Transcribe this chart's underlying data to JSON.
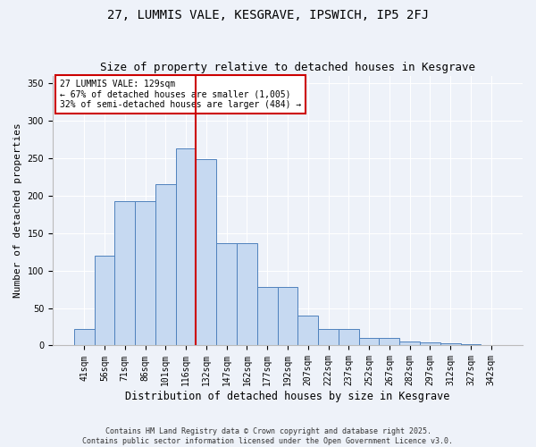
{
  "title": "27, LUMMIS VALE, KESGRAVE, IPSWICH, IP5 2FJ",
  "subtitle": "Size of property relative to detached houses in Kesgrave",
  "xlabel": "Distribution of detached houses by size in Kesgrave",
  "ylabel": "Number of detached properties",
  "categories": [
    "41sqm",
    "56sqm",
    "71sqm",
    "86sqm",
    "101sqm",
    "116sqm",
    "132sqm",
    "147sqm",
    "162sqm",
    "177sqm",
    "192sqm",
    "207sqm",
    "222sqm",
    "237sqm",
    "252sqm",
    "267sqm",
    "282sqm",
    "297sqm",
    "312sqm",
    "327sqm",
    "342sqm"
  ],
  "bar_values": [
    22,
    120,
    192,
    193,
    215,
    263,
    248,
    136,
    136,
    78,
    78,
    40,
    22,
    22,
    10,
    10,
    5,
    4,
    3,
    2,
    1
  ],
  "bar_color": "#c6d9f1",
  "bar_edge_color": "#4f81bd",
  "vline_color": "#cc0000",
  "vline_index": 6,
  "annotation_text": "27 LUMMIS VALE: 129sqm\n← 67% of detached houses are smaller (1,005)\n32% of semi-detached houses are larger (484) →",
  "annotation_box_color": "#ffffff",
  "annotation_box_edge": "#cc0000",
  "ylim": [
    0,
    360
  ],
  "yticks": [
    0,
    50,
    100,
    150,
    200,
    250,
    300,
    350
  ],
  "bg_color": "#eef2f9",
  "grid_color": "#ffffff",
  "footer": "Contains HM Land Registry data © Crown copyright and database right 2025.\nContains public sector information licensed under the Open Government Licence v3.0.",
  "title_fontsize": 10,
  "subtitle_fontsize": 9,
  "tick_fontsize": 7,
  "ylabel_fontsize": 8,
  "xlabel_fontsize": 8.5,
  "annot_fontsize": 7,
  "footer_fontsize": 6
}
